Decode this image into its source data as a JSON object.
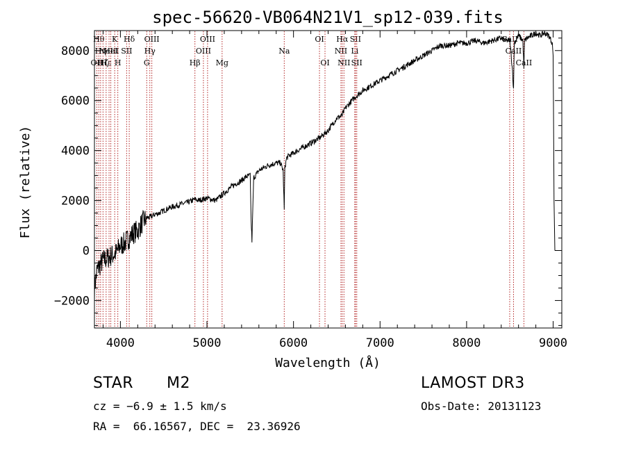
{
  "chart_data": {
    "type": "line",
    "title": "spec-56620-VB064N21V1_sp12-039.fits",
    "xlabel": "Wavelength (Å)",
    "ylabel": "Flux (relative)",
    "xlim": [
      3700,
      9100
    ],
    "ylim": [
      -3100,
      8800
    ],
    "x_ticks": [
      4000,
      5000,
      6000,
      7000,
      8000,
      9000
    ],
    "x_tick_labels": [
      "4000",
      "5000",
      "6000",
      "7000",
      "8000",
      "9000"
    ],
    "y_ticks": [
      -2000,
      0,
      2000,
      4000,
      6000,
      8000
    ],
    "y_tick_labels": [
      "−2000",
      "0",
      "2000",
      "4000",
      "6000",
      "8000"
    ],
    "line_color": "#000000",
    "marker_color": "#b22222",
    "series": [
      {
        "name": "flux",
        "x": [
          3700,
          3730,
          3760,
          3800,
          3850,
          3900,
          3950,
          4000,
          4050,
          4100,
          4150,
          4200,
          4250,
          4300,
          4350,
          4400,
          4450,
          4500,
          4600,
          4700,
          4800,
          4860,
          4900,
          5000,
          5100,
          5200,
          5300,
          5400,
          5450,
          5500,
          5510,
          5520,
          5540,
          5600,
          5700,
          5800,
          5850,
          5880,
          5893,
          5900,
          5920,
          5950,
          6000,
          6100,
          6200,
          6300,
          6400,
          6500,
          6560,
          6600,
          6700,
          6800,
          6900,
          7000,
          7100,
          7200,
          7300,
          7400,
          7500,
          7600,
          7700,
          7800,
          7900,
          8000,
          8100,
          8200,
          8300,
          8400,
          8450,
          8500,
          8530,
          8542,
          8550,
          8600,
          8650,
          8662,
          8670,
          8700,
          8750,
          8800,
          8850,
          8900,
          8950,
          8990,
          9000,
          9010,
          9020
        ],
        "y": [
          -1500,
          -800,
          -600,
          -400,
          -300,
          -200,
          -100,
          200,
          300,
          500,
          700,
          800,
          1100,
          1300,
          1350,
          1450,
          1500,
          1600,
          1750,
          1850,
          1950,
          2050,
          2000,
          2100,
          2000,
          2300,
          2600,
          2800,
          2950,
          3000,
          1200,
          400,
          2900,
          3200,
          3400,
          3500,
          3500,
          3200,
          1600,
          3300,
          3700,
          3800,
          3900,
          4100,
          4300,
          4500,
          4800,
          5300,
          5400,
          5700,
          6100,
          6400,
          6600,
          6800,
          7000,
          7200,
          7400,
          7600,
          7800,
          8000,
          8200,
          8200,
          8300,
          8300,
          8400,
          8300,
          8400,
          8500,
          8400,
          8400,
          7200,
          6400,
          8300,
          8600,
          8400,
          7300,
          8400,
          8500,
          8600,
          8700,
          8600,
          8700,
          8600,
          8300,
          7800,
          2000,
          0
        ]
      }
    ],
    "line_markers": [
      {
        "wl": 3727,
        "label": "OII",
        "row": 3
      },
      {
        "wl": 3750,
        "label": "Hθ",
        "row": 1
      },
      {
        "wl": 3771,
        "label": "Hη",
        "row": 2
      },
      {
        "wl": 3799,
        "label": "Hζ",
        "row": 3
      },
      {
        "wl": 3835,
        "label": "Hε",
        "row": 3
      },
      {
        "wl": 3869,
        "label": "NeIII",
        "row": 2
      },
      {
        "wl": 3889,
        "label": "HeI",
        "row": 2
      },
      {
        "wl": 3934,
        "label": "K",
        "row": 1
      },
      {
        "wl": 3970,
        "label": "H",
        "row": 3
      },
      {
        "wl": 4072,
        "label": "SII",
        "row": 2
      },
      {
        "wl": 4102,
        "label": "Hδ",
        "row": 1
      },
      {
        "wl": 4304,
        "label": "G",
        "row": 3
      },
      {
        "wl": 4340,
        "label": "Hγ",
        "row": 2
      },
      {
        "wl": 4363,
        "label": "OIII",
        "row": 1
      },
      {
        "wl": 4861,
        "label": "Hβ",
        "row": 3
      },
      {
        "wl": 4959,
        "label": "OIII",
        "row": 2
      },
      {
        "wl": 5007,
        "label": "OIII",
        "row": 1
      },
      {
        "wl": 5175,
        "label": "Mg",
        "row": 3
      },
      {
        "wl": 5893,
        "label": "Na",
        "row": 2
      },
      {
        "wl": 6300,
        "label": "OI",
        "row": 1
      },
      {
        "wl": 6364,
        "label": "OI",
        "row": 3
      },
      {
        "wl": 6548,
        "label": "NII",
        "row": 2
      },
      {
        "wl": 6563,
        "label": "Hα",
        "row": 1
      },
      {
        "wl": 6583,
        "label": "NII",
        "row": 3
      },
      {
        "wl": 6708,
        "label": "Li",
        "row": 2
      },
      {
        "wl": 6716,
        "label": "SII",
        "row": 1
      },
      {
        "wl": 6731,
        "label": "SII",
        "row": 3
      },
      {
        "wl": 8498,
        "label": "CaII",
        "row": 1
      },
      {
        "wl": 8542,
        "label": "CaII",
        "row": 2
      },
      {
        "wl": 8662,
        "label": "CaII",
        "row": 3
      }
    ]
  },
  "info": {
    "object_class": "STAR",
    "subclass": "M2",
    "survey": "LAMOST DR3",
    "cz": "cz = −6.9 ± 1.5 km/s",
    "obs_date": "Obs-Date: 20131123",
    "coords": "RA =  66.16567, DEC =  23.36926"
  }
}
